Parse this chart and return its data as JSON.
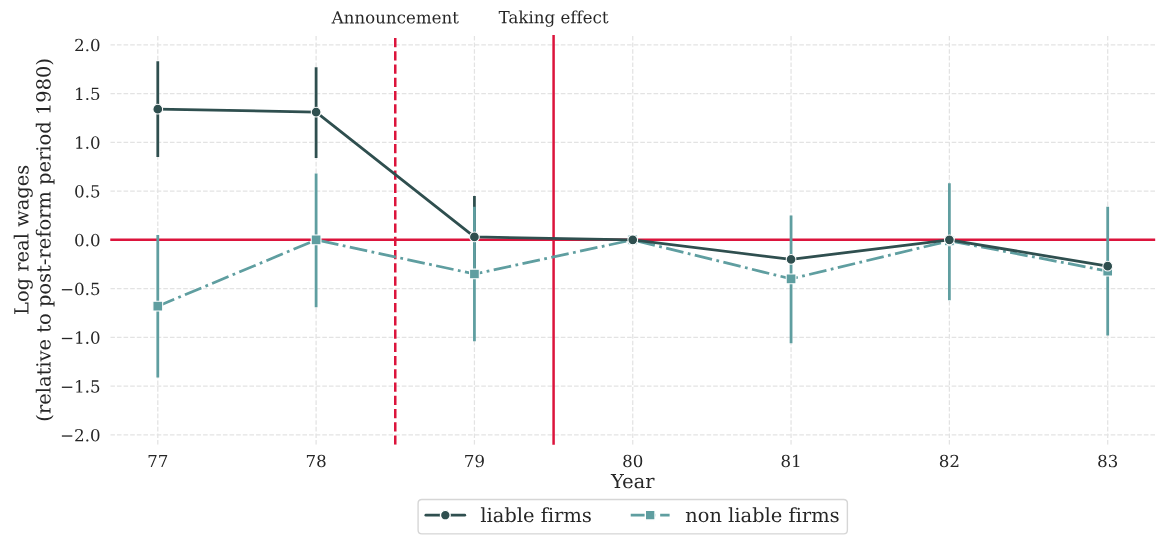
{
  "chart_data": {
    "type": "line",
    "xlabel": "Year",
    "ylabel": "Log real wages\n(relative to post-reform period 1980)",
    "x": [
      77,
      78,
      79,
      80,
      81,
      82,
      83
    ],
    "series": [
      {
        "name": "liable firms",
        "color": "#2f4f4f",
        "marker": "circle",
        "line_style": "solid",
        "values": [
          1.34,
          1.31,
          0.03,
          0.0,
          -0.2,
          0.0,
          -0.27
        ],
        "errors": [
          [
            0.85,
            1.83
          ],
          [
            0.84,
            1.77
          ],
          [
            -0.38,
            0.45
          ],
          null,
          null,
          null,
          null
        ]
      },
      {
        "name": "non liable firms",
        "color": "#5f9ea0",
        "marker": "square",
        "line_style": "dashdot",
        "values": [
          -0.68,
          0.0,
          -0.35,
          0.0,
          -0.4,
          -0.01,
          -0.32
        ],
        "errors": [
          [
            -1.41,
            0.05
          ],
          [
            -0.69,
            0.68
          ],
          [
            -1.04,
            0.34
          ],
          null,
          [
            -1.06,
            0.25
          ],
          [
            -0.62,
            0.58
          ],
          [
            -0.98,
            0.34
          ]
        ]
      }
    ],
    "ref_lines": [
      {
        "axis": "y",
        "value": 0,
        "color": "#dc143c",
        "line_style": "solid"
      },
      {
        "axis": "x",
        "value": 78.5,
        "label": "Announcement",
        "color": "#dc143c",
        "line_style": "dashed"
      },
      {
        "axis": "x",
        "value": 79.5,
        "label": "Taking effect",
        "color": "#dc143c",
        "line_style": "solid"
      }
    ],
    "xlim": [
      76.7,
      83.3
    ],
    "xticks": [
      77,
      78,
      79,
      80,
      81,
      82,
      83
    ],
    "ylim": [
      -2.1,
      2.1
    ],
    "yticks": [
      {
        "value": -2,
        "label": "−2.0"
      },
      {
        "value": -1.5,
        "label": "−1.5"
      },
      {
        "value": -1,
        "label": "−1.0"
      },
      {
        "value": -0.5,
        "label": "−0.5"
      },
      {
        "value": 0,
        "label": "0.0"
      },
      {
        "value": 0.5,
        "label": "0.5"
      },
      {
        "value": 1,
        "label": "1.0"
      },
      {
        "value": 1.5,
        "label": "1.5"
      },
      {
        "value": 2,
        "label": "2.0"
      }
    ],
    "grid": true,
    "legend": "bottom"
  }
}
